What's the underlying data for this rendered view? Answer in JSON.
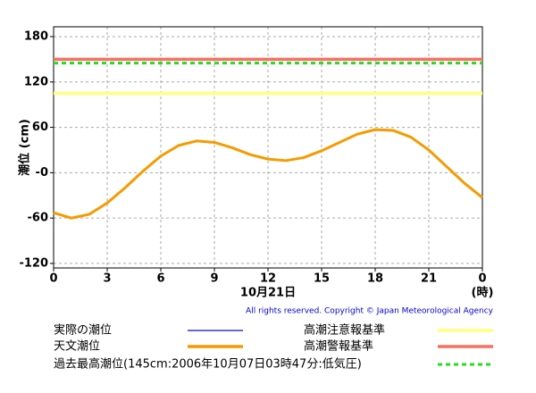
{
  "chart_data": {
    "type": "line",
    "y_label": "潮位 (cm)",
    "x_label": "10月21日",
    "x_unit_label": "(時)",
    "credit": "All rights reserved. Copyright © Japan Meteorological Agency",
    "x": [
      0,
      1,
      2,
      3,
      4,
      5,
      6,
      7,
      8,
      9,
      10,
      11,
      12,
      13,
      14,
      15,
      16,
      17,
      18,
      19,
      20,
      21,
      22,
      23,
      24
    ],
    "series": [
      {
        "name": "実際の潮位",
        "color": "#3333cc",
        "values": [
          null,
          null,
          null,
          null,
          null,
          null,
          null,
          null,
          null,
          null,
          null,
          null,
          null,
          null,
          null,
          null,
          null,
          null,
          null,
          null,
          null,
          null,
          null,
          null,
          null
        ]
      },
      {
        "name": "天文潮位",
        "color": "#f59b00",
        "values": [
          -53,
          -60,
          -55,
          -40,
          -20,
          2,
          22,
          36,
          42,
          40,
          33,
          24,
          18,
          16,
          20,
          29,
          40,
          51,
          57,
          56,
          47,
          30,
          8,
          -14,
          -33
        ]
      }
    ],
    "reference_lines": [
      {
        "name": "高潮注意報基準",
        "value": 105,
        "color": "#ffff80",
        "dashed": false
      },
      {
        "name": "高潮警報基準",
        "value": 150,
        "color": "#f87060",
        "dashed": false
      },
      {
        "name": "過去最高潮位(145cm:2006年10月07日03時47分:低気圧)",
        "value": 145,
        "color": "#22dd22",
        "dashed": true
      }
    ],
    "xlim": [
      0,
      24
    ],
    "xticks": [
      0,
      3,
      6,
      9,
      12,
      15,
      18,
      21,
      {
        "value": 24,
        "label": "0"
      }
    ],
    "ylim": [
      -126,
      193
    ],
    "yticks": [
      -120,
      -60,
      {
        "value": 0,
        "label": "-0"
      },
      60,
      120,
      180
    ],
    "grid": true
  }
}
